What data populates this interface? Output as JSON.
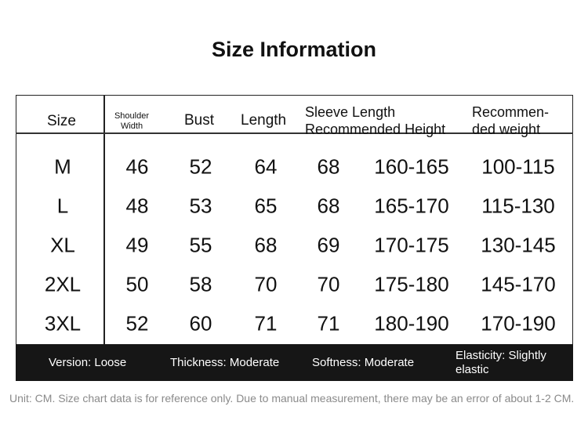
{
  "title": "Size Information",
  "headers": [
    "Size",
    "Shoulder Width",
    "Bust",
    "Length",
    "Sleeve Length",
    "Recommended Height",
    "Recommen-",
    "ded weight"
  ],
  "rows": [
    [
      "M",
      "46",
      "52",
      "64",
      "68",
      "160-165",
      "100-115"
    ],
    [
      "L",
      "48",
      "53",
      "65",
      "68",
      "165-170",
      "115-130"
    ],
    [
      "XL",
      "49",
      "55",
      "68",
      "69",
      "170-175",
      "130-145"
    ],
    [
      "2XL",
      "50",
      "58",
      "70",
      "70",
      "175-180",
      "145-170"
    ],
    [
      "3XL",
      "52",
      "60",
      "71",
      "71",
      "180-190",
      "170-190"
    ]
  ],
  "attributes": [
    "Version: Loose",
    "Thickness: Moderate",
    "Softness: Moderate",
    "Elasticity: Slightly elastic"
  ],
  "note": "Unit: CM. Size chart data is for reference only. Due to manual measurement, there may be an error of about 1-2 CM."
}
